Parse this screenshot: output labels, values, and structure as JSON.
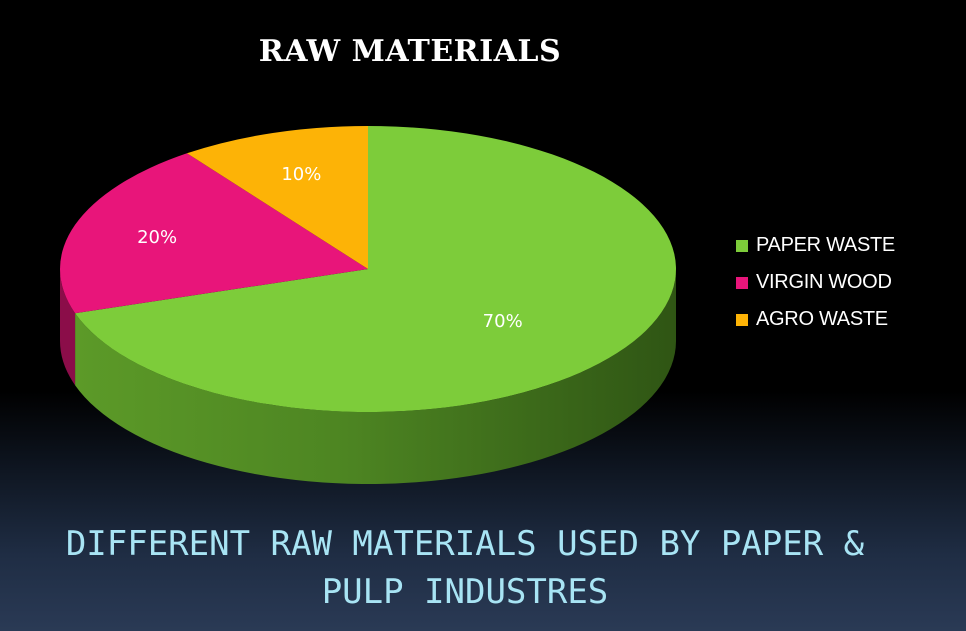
{
  "chart_data": {
    "type": "pie",
    "title": "RAW MATERIALS",
    "categories": [
      "PAPER WASTE",
      "VIRGIN WOOD",
      "AGRO WASTE"
    ],
    "values": [
      70,
      20,
      10
    ],
    "data_labels": [
      "70%",
      "20%",
      "10%"
    ],
    "colors": [
      "#7dcc3a",
      "#e8157a",
      "#fdb306"
    ],
    "legend_position": "right",
    "style": "3d"
  },
  "caption": {
    "line1": "DIFFERENT RAW MATERIALS USED BY PAPER &",
    "line2": "PULP INDUSTRES"
  }
}
